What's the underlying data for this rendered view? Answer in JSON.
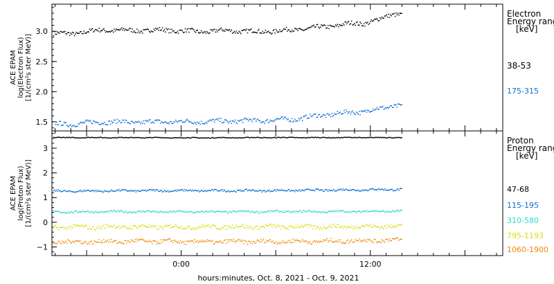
{
  "chart_data": [
    {
      "type": "scatter",
      "title": "",
      "ylabel_lines": [
        "ACE EPAM",
        "log(Electron Flux)",
        "[1/(cm²s ster MeV)]"
      ],
      "ylim": [
        1.35,
        3.45
      ],
      "yticks": [
        1.5,
        2.0,
        2.5,
        3.0
      ],
      "ytick_labels": [
        "1.5",
        "2.0",
        "2.5",
        "3.0"
      ],
      "legend_title_lines": [
        "Electron",
        "Energy range",
        "[keV]"
      ],
      "series": [
        {
          "name": "38-53",
          "color": "#000000",
          "x": [
            -7,
            -5,
            -3,
            -1,
            1,
            3,
            5,
            7,
            9,
            10.5,
            11.5,
            12.5,
            13.5
          ],
          "y": [
            2.97,
            3.03,
            3.02,
            3.03,
            3.0,
            3.02,
            3.0,
            3.03,
            3.08,
            3.13,
            3.14,
            3.2,
            3.3
          ]
        },
        {
          "name": "175-315",
          "color": "#0a6fcf",
          "x": [
            -7,
            -5,
            -3,
            -1,
            1,
            3,
            5,
            7,
            9,
            10.5,
            11.5,
            12.5,
            13.5
          ],
          "y": [
            1.47,
            1.51,
            1.5,
            1.51,
            1.51,
            1.52,
            1.53,
            1.55,
            1.62,
            1.66,
            1.68,
            1.72,
            1.78
          ]
        }
      ]
    },
    {
      "type": "scatter",
      "title": "",
      "ylabel_lines": [
        "ACE EPAM",
        "log(Proton Flux)",
        "[1/(cm²s ster MeV)]"
      ],
      "ylim": [
        -1.35,
        3.7
      ],
      "yticks": [
        -1,
        0,
        1,
        2,
        3
      ],
      "ytick_labels": [
        "−1",
        "0",
        "1",
        "2",
        "3"
      ],
      "legend_title_lines": [
        "Proton",
        "Energy range",
        "[keV]"
      ],
      "series": [
        {
          "name": "47-68",
          "color": "#000000",
          "x": [
            -7,
            -3,
            1,
            5,
            9,
            13.5
          ],
          "y": [
            3.45,
            3.45,
            3.44,
            3.45,
            3.45,
            3.45
          ]
        },
        {
          "name": "115-195",
          "color": "#0a6fcf",
          "x": [
            -7,
            -3,
            1,
            5,
            9,
            13.5
          ],
          "y": [
            1.28,
            1.3,
            1.3,
            1.3,
            1.32,
            1.35
          ]
        },
        {
          "name": "310-580",
          "color": "#2fd7d0",
          "x": [
            -7,
            -3,
            1,
            5,
            9,
            13.5
          ],
          "y": [
            0.44,
            0.45,
            0.44,
            0.45,
            0.45,
            0.47
          ]
        },
        {
          "name": "795-1193",
          "color": "#d6de12",
          "x": [
            -7,
            -3,
            1,
            5,
            9,
            13.5
          ],
          "y": [
            -0.18,
            -0.16,
            -0.17,
            -0.16,
            -0.16,
            -0.14
          ]
        },
        {
          "name": "1060-1900",
          "color": "#f08a0a",
          "x": [
            -7,
            -3,
            1,
            5,
            9,
            13.5
          ],
          "y": [
            -0.78,
            -0.75,
            -0.77,
            -0.76,
            -0.75,
            -0.7
          ]
        }
      ]
    }
  ],
  "x_axis": {
    "xlim": [
      -8.2,
      20.4
    ],
    "tick_positions": [
      0,
      12
    ],
    "tick_labels": [
      "0:00",
      "12:00"
    ],
    "label": "hours:minutes, Oct.  8, 2021 - Oct.  9, 2021",
    "data_end": 14
  }
}
